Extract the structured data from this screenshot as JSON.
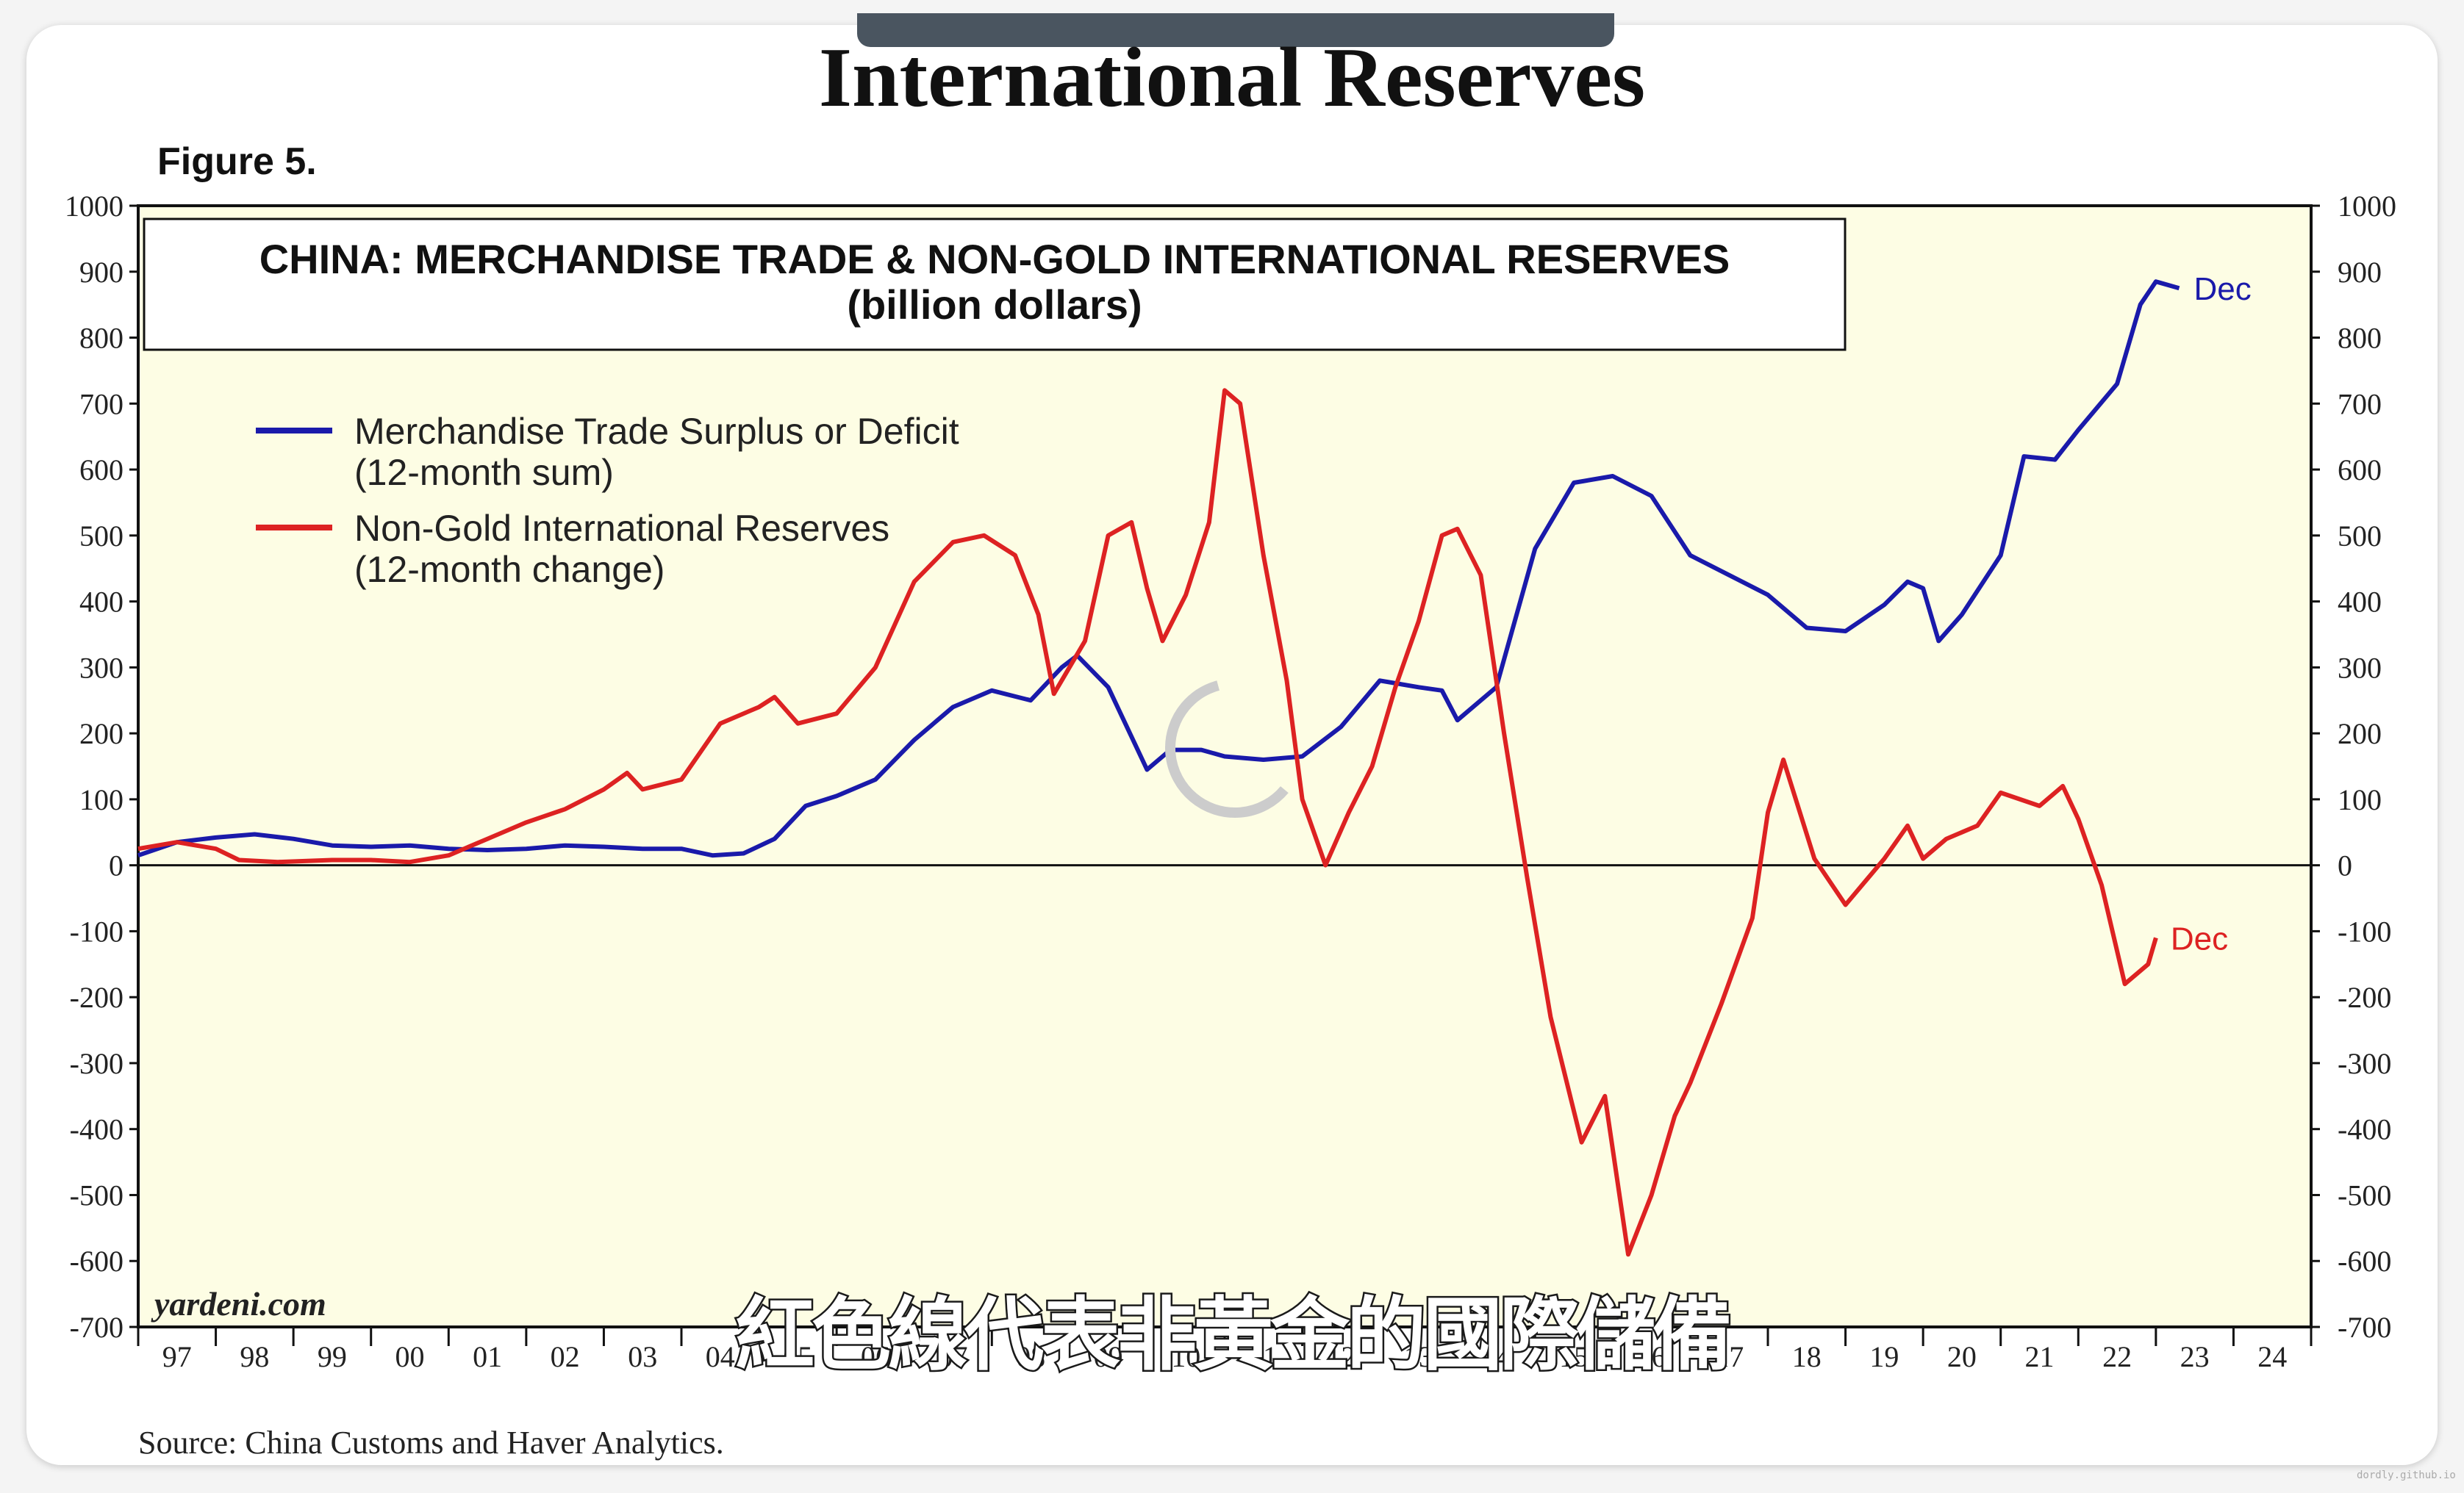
{
  "slide": {
    "title": "International Reserves",
    "figure_label": "Figure 5.",
    "subtitle_text": "紅色線代表非黃金的國際儲備",
    "source": "Source: China Customs and Haver Analytics.",
    "brand": "yardeni.com",
    "watermark": "dordly.github.io"
  },
  "chart_data": {
    "type": "line",
    "title": "CHINA: MERCHANDISE TRADE & NON-GOLD INTERNATIONAL RESERVES",
    "subtitle": "(billion dollars)",
    "xlabel": "",
    "ylabel": "",
    "xlim": [
      1997,
      2025
    ],
    "ylim": [
      -700,
      1000
    ],
    "yticks": [
      1000,
      900,
      800,
      700,
      600,
      500,
      400,
      300,
      200,
      100,
      0,
      -100,
      -200,
      -300,
      -400,
      -500,
      -600,
      -700
    ],
    "xticks": [
      "97",
      "98",
      "99",
      "00",
      "01",
      "02",
      "03",
      "04",
      "05",
      "06",
      "07",
      "08",
      "09",
      "10",
      "11",
      "12",
      "13",
      "14",
      "15",
      "16",
      "17",
      "18",
      "19",
      "20",
      "21",
      "22",
      "23",
      "24"
    ],
    "grid": false,
    "legend_position": "top-left",
    "colors": {
      "trade": "#1a1aaa",
      "reserves": "#dd2222",
      "plot_bg": "#fdfde4"
    },
    "series": [
      {
        "name": "Merchandise Trade Surplus or Deficit",
        "name_line2": "(12-month sum)",
        "end_label": "Dec",
        "color": "#1a1aaa",
        "points": [
          [
            1997.0,
            15
          ],
          [
            1997.5,
            35
          ],
          [
            1998.0,
            42
          ],
          [
            1998.5,
            47
          ],
          [
            1999.0,
            40
          ],
          [
            1999.5,
            30
          ],
          [
            2000.0,
            28
          ],
          [
            2000.5,
            30
          ],
          [
            2001.0,
            25
          ],
          [
            2001.5,
            23
          ],
          [
            2002.0,
            25
          ],
          [
            2002.5,
            30
          ],
          [
            2003.0,
            28
          ],
          [
            2003.5,
            25
          ],
          [
            2004.0,
            25
          ],
          [
            2004.4,
            15
          ],
          [
            2004.8,
            18
          ],
          [
            2005.2,
            40
          ],
          [
            2005.6,
            90
          ],
          [
            2006.0,
            105
          ],
          [
            2006.5,
            130
          ],
          [
            2007.0,
            190
          ],
          [
            2007.5,
            240
          ],
          [
            2008.0,
            265
          ],
          [
            2008.5,
            250
          ],
          [
            2008.9,
            300
          ],
          [
            2009.1,
            318
          ],
          [
            2009.5,
            270
          ],
          [
            2010.0,
            145
          ],
          [
            2010.3,
            175
          ],
          [
            2010.7,
            175
          ],
          [
            2011.0,
            165
          ],
          [
            2011.5,
            160
          ],
          [
            2012.0,
            165
          ],
          [
            2012.5,
            210
          ],
          [
            2013.0,
            280
          ],
          [
            2013.5,
            270
          ],
          [
            2013.8,
            265
          ],
          [
            2014.0,
            220
          ],
          [
            2014.5,
            270
          ],
          [
            2015.0,
            480
          ],
          [
            2015.5,
            580
          ],
          [
            2016.0,
            590
          ],
          [
            2016.5,
            560
          ],
          [
            2017.0,
            470
          ],
          [
            2017.5,
            440
          ],
          [
            2018.0,
            410
          ],
          [
            2018.5,
            360
          ],
          [
            2019.0,
            355
          ],
          [
            2019.5,
            395
          ],
          [
            2019.8,
            430
          ],
          [
            2020.0,
            420
          ],
          [
            2020.2,
            340
          ],
          [
            2020.5,
            380
          ],
          [
            2021.0,
            470
          ],
          [
            2021.3,
            620
          ],
          [
            2021.7,
            615
          ],
          [
            2022.0,
            660
          ],
          [
            2022.5,
            730
          ],
          [
            2022.8,
            850
          ],
          [
            2023.0,
            885
          ],
          [
            2023.3,
            875
          ]
        ]
      },
      {
        "name": "Non-Gold International Reserves",
        "name_line2": "(12-month change)",
        "end_label": "Dec",
        "color": "#dd2222",
        "points": [
          [
            1997.0,
            25
          ],
          [
            1997.5,
            35
          ],
          [
            1998.0,
            25
          ],
          [
            1998.3,
            8
          ],
          [
            1998.8,
            5
          ],
          [
            1999.5,
            8
          ],
          [
            2000.0,
            8
          ],
          [
            2000.5,
            5
          ],
          [
            2001.0,
            15
          ],
          [
            2001.5,
            40
          ],
          [
            2002.0,
            65
          ],
          [
            2002.5,
            85
          ],
          [
            2003.0,
            115
          ],
          [
            2003.3,
            140
          ],
          [
            2003.5,
            115
          ],
          [
            2004.0,
            130
          ],
          [
            2004.5,
            215
          ],
          [
            2005.0,
            240
          ],
          [
            2005.2,
            255
          ],
          [
            2005.5,
            215
          ],
          [
            2006.0,
            230
          ],
          [
            2006.5,
            300
          ],
          [
            2007.0,
            430
          ],
          [
            2007.5,
            490
          ],
          [
            2007.9,
            500
          ],
          [
            2008.3,
            470
          ],
          [
            2008.6,
            380
          ],
          [
            2008.8,
            260
          ],
          [
            2009.2,
            340
          ],
          [
            2009.5,
            500
          ],
          [
            2009.8,
            520
          ],
          [
            2010.0,
            420
          ],
          [
            2010.2,
            340
          ],
          [
            2010.5,
            410
          ],
          [
            2010.8,
            520
          ],
          [
            2011.0,
            720
          ],
          [
            2011.2,
            700
          ],
          [
            2011.5,
            470
          ],
          [
            2011.8,
            280
          ],
          [
            2012.0,
            100
          ],
          [
            2012.3,
            0
          ],
          [
            2012.6,
            80
          ],
          [
            2012.9,
            150
          ],
          [
            2013.2,
            270
          ],
          [
            2013.5,
            370
          ],
          [
            2013.8,
            500
          ],
          [
            2014.0,
            510
          ],
          [
            2014.3,
            440
          ],
          [
            2014.6,
            200
          ],
          [
            2014.9,
            -20
          ],
          [
            2015.2,
            -230
          ],
          [
            2015.6,
            -420
          ],
          [
            2015.9,
            -350
          ],
          [
            2016.2,
            -590
          ],
          [
            2016.5,
            -500
          ],
          [
            2016.8,
            -380
          ],
          [
            2017.0,
            -330
          ],
          [
            2017.4,
            -210
          ],
          [
            2017.8,
            -80
          ],
          [
            2018.0,
            80
          ],
          [
            2018.2,
            160
          ],
          [
            2018.6,
            10
          ],
          [
            2019.0,
            -60
          ],
          [
            2019.5,
            10
          ],
          [
            2019.8,
            60
          ],
          [
            2020.0,
            10
          ],
          [
            2020.3,
            40
          ],
          [
            2020.7,
            60
          ],
          [
            2021.0,
            110
          ],
          [
            2021.5,
            90
          ],
          [
            2021.8,
            120
          ],
          [
            2022.0,
            70
          ],
          [
            2022.3,
            -30
          ],
          [
            2022.6,
            -180
          ],
          [
            2022.9,
            -150
          ],
          [
            2023.0,
            -110
          ]
        ]
      }
    ]
  }
}
